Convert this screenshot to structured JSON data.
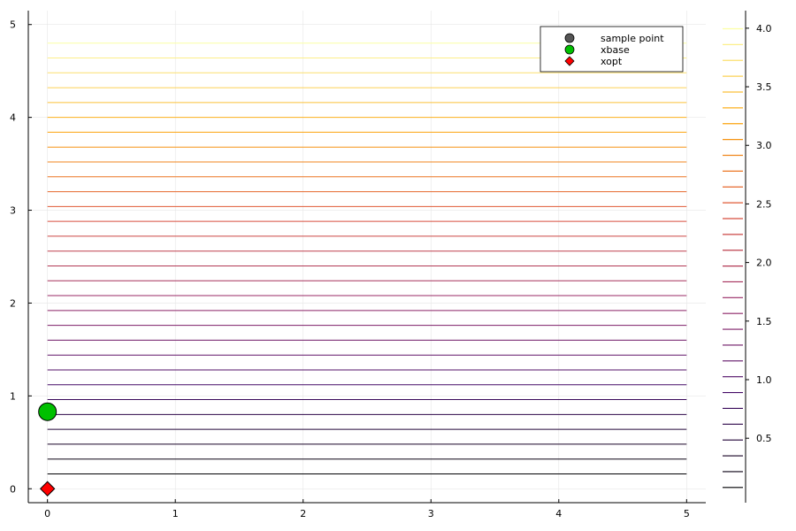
{
  "chart_data": {
    "type": "contour",
    "xlim": [
      -0.15,
      5.15
    ],
    "ylim": [
      -0.15,
      5.15
    ],
    "x_ticks": [
      0,
      1,
      2,
      3,
      4,
      5
    ],
    "y_ticks": [
      0,
      1,
      2,
      3,
      4,
      5
    ],
    "grid": true,
    "contour": {
      "orientation": "horizontal",
      "x_range": [
        0,
        5
      ],
      "y_start": 0.16,
      "y_step": 0.16,
      "count": 30
    },
    "colorbar": {
      "levels_start": 0.08,
      "levels_step": 0.135,
      "levels_count": 30,
      "range": [
        -0.05,
        4.15
      ],
      "ticks": [
        "4.0",
        "3.5",
        "3.0",
        "2.5",
        "2.0",
        "1.5",
        "1.0",
        "0.5"
      ],
      "tick_values": [
        4.0,
        3.5,
        3.0,
        2.5,
        2.0,
        1.5,
        1.0,
        0.5
      ],
      "colormap": [
        "#000004",
        "#420a68",
        "#932667",
        "#dd513a",
        "#fca50a",
        "#fcffa4"
      ]
    },
    "legend": {
      "placement": "top-right",
      "entries": [
        {
          "name": "sample point",
          "marker": "circle",
          "color": "#555555"
        },
        {
          "name": "xbase",
          "marker": "circle",
          "color": "#00c000"
        },
        {
          "name": "xopt",
          "marker": "diamond",
          "color": "#ff0000"
        }
      ]
    },
    "points": [
      {
        "series": "xbase",
        "x": 0,
        "y": 0.83,
        "marker": "circle",
        "color": "#00c000",
        "size": "large"
      },
      {
        "series": "xopt",
        "x": 0,
        "y": 0.0,
        "marker": "diamond",
        "color": "#ff0000",
        "size": "medium"
      }
    ]
  }
}
